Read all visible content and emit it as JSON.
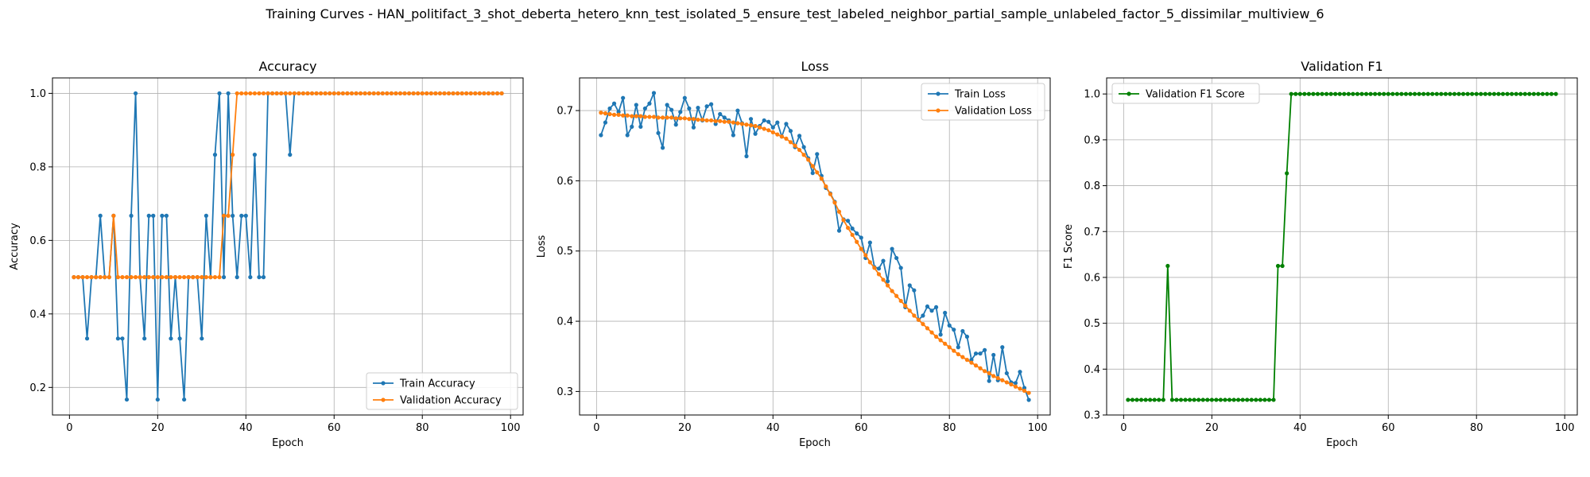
{
  "suptitle": "Training Curves - HAN_politifact_3_shot_deberta_hetero_knn_test_isolated_5_ensure_test_labeled_neighbor_partial_sample_unlabeled_factor_5_dissimilar_multiview_6",
  "colors": {
    "train": "#1f77b4",
    "val": "#ff7f0e",
    "f1": "#008000",
    "grid": "#b0b0b0"
  },
  "chart_data": [
    {
      "type": "line",
      "title": "Accuracy",
      "xlabel": "Epoch",
      "ylabel": "Accuracy",
      "xlim": [
        -3.85,
        102.85
      ],
      "ylim": [
        0.125,
        1.042
      ],
      "xticks": [
        0,
        20,
        40,
        60,
        80,
        100
      ],
      "yticks": [
        0.2,
        0.4,
        0.6,
        0.8,
        1.0
      ],
      "ytick_labels": [
        "0.2",
        "0.4",
        "0.6",
        "0.8",
        "1.0"
      ],
      "grid": true,
      "legend_position": "lower-right",
      "series": [
        {
          "name": "Train Accuracy",
          "color": "#1f77b4",
          "x": [
            1,
            2,
            3,
            4,
            5,
            6,
            7,
            8,
            9,
            10,
            11,
            12,
            13,
            14,
            15,
            16,
            17,
            18,
            19,
            20,
            21,
            22,
            23,
            24,
            25,
            26,
            27,
            28,
            29,
            30,
            31,
            32,
            33,
            34,
            35,
            36,
            37,
            38,
            39,
            40,
            41,
            42,
            43,
            44,
            45,
            46,
            47,
            48,
            49,
            50,
            51,
            52,
            53,
            54,
            55,
            56,
            57,
            58,
            59,
            60,
            61,
            62,
            63,
            64,
            65,
            66,
            67,
            68,
            69,
            70,
            71,
            72,
            73,
            74,
            75,
            76,
            77,
            78,
            79,
            80,
            81,
            82,
            83,
            84,
            85,
            86,
            87,
            88,
            89,
            90,
            91,
            92,
            93,
            94,
            95,
            96,
            97,
            98
          ],
          "y": [
            0.5,
            0.5,
            0.5,
            0.333,
            0.5,
            0.5,
            0.667,
            0.5,
            0.5,
            0.667,
            0.333,
            0.333,
            0.167,
            0.667,
            1.0,
            0.5,
            0.333,
            0.667,
            0.667,
            0.167,
            0.667,
            0.667,
            0.333,
            0.5,
            0.333,
            0.167,
            0.5,
            0.5,
            0.5,
            0.333,
            0.667,
            0.5,
            0.833,
            1.0,
            0.5,
            1.0,
            0.667,
            0.5,
            0.667,
            0.667,
            0.5,
            0.833,
            0.5,
            0.5,
            1.0,
            1.0,
            1.0,
            1.0,
            1.0,
            0.833,
            1.0,
            1.0,
            1.0,
            1.0,
            1.0,
            1.0,
            1.0,
            1.0,
            1.0,
            1.0,
            1.0,
            1.0,
            1.0,
            1.0,
            1.0,
            1.0,
            1.0,
            1.0,
            1.0,
            1.0,
            1.0,
            1.0,
            1.0,
            1.0,
            1.0,
            1.0,
            1.0,
            1.0,
            1.0,
            1.0,
            1.0,
            1.0,
            1.0,
            1.0,
            1.0,
            1.0,
            1.0,
            1.0,
            1.0,
            1.0,
            1.0,
            1.0,
            1.0,
            1.0,
            1.0,
            1.0,
            1.0,
            1.0
          ]
        },
        {
          "name": "Validation Accuracy",
          "color": "#ff7f0e",
          "x": [
            1,
            2,
            3,
            4,
            5,
            6,
            7,
            8,
            9,
            10,
            11,
            12,
            13,
            14,
            15,
            16,
            17,
            18,
            19,
            20,
            21,
            22,
            23,
            24,
            25,
            26,
            27,
            28,
            29,
            30,
            31,
            32,
            33,
            34,
            35,
            36,
            37,
            38,
            39,
            40,
            41,
            42,
            43,
            44,
            45,
            46,
            47,
            48,
            49,
            50,
            51,
            52,
            53,
            54,
            55,
            56,
            57,
            58,
            59,
            60,
            61,
            62,
            63,
            64,
            65,
            66,
            67,
            68,
            69,
            70,
            71,
            72,
            73,
            74,
            75,
            76,
            77,
            78,
            79,
            80,
            81,
            82,
            83,
            84,
            85,
            86,
            87,
            88,
            89,
            90,
            91,
            92,
            93,
            94,
            95,
            96,
            97,
            98
          ],
          "y": [
            0.5,
            0.5,
            0.5,
            0.5,
            0.5,
            0.5,
            0.5,
            0.5,
            0.5,
            0.667,
            0.5,
            0.5,
            0.5,
            0.5,
            0.5,
            0.5,
            0.5,
            0.5,
            0.5,
            0.5,
            0.5,
            0.5,
            0.5,
            0.5,
            0.5,
            0.5,
            0.5,
            0.5,
            0.5,
            0.5,
            0.5,
            0.5,
            0.5,
            0.5,
            0.667,
            0.667,
            0.833,
            1.0,
            1.0,
            1.0,
            1.0,
            1.0,
            1.0,
            1.0,
            1.0,
            1.0,
            1.0,
            1.0,
            1.0,
            1.0,
            1.0,
            1.0,
            1.0,
            1.0,
            1.0,
            1.0,
            1.0,
            1.0,
            1.0,
            1.0,
            1.0,
            1.0,
            1.0,
            1.0,
            1.0,
            1.0,
            1.0,
            1.0,
            1.0,
            1.0,
            1.0,
            1.0,
            1.0,
            1.0,
            1.0,
            1.0,
            1.0,
            1.0,
            1.0,
            1.0,
            1.0,
            1.0,
            1.0,
            1.0,
            1.0,
            1.0,
            1.0,
            1.0,
            1.0,
            1.0,
            1.0,
            1.0,
            1.0,
            1.0,
            1.0,
            1.0,
            1.0,
            1.0
          ]
        }
      ]
    },
    {
      "type": "line",
      "title": "Loss",
      "xlabel": "Epoch",
      "ylabel": "Loss",
      "xlim": [
        -3.85,
        102.85
      ],
      "ylim": [
        0.2665,
        0.7465
      ],
      "xticks": [
        0,
        20,
        40,
        60,
        80,
        100
      ],
      "yticks": [
        0.3,
        0.4,
        0.5,
        0.6,
        0.7
      ],
      "ytick_labels": [
        "0.3",
        "0.4",
        "0.5",
        "0.6",
        "0.7"
      ],
      "grid": true,
      "legend_position": "upper-right",
      "series": [
        {
          "name": "Train Loss",
          "color": "#1f77b4",
          "x": [
            1,
            2,
            3,
            4,
            5,
            6,
            7,
            8,
            9,
            10,
            11,
            12,
            13,
            14,
            15,
            16,
            17,
            18,
            19,
            20,
            21,
            22,
            23,
            24,
            25,
            26,
            27,
            28,
            29,
            30,
            31,
            32,
            33,
            34,
            35,
            36,
            37,
            38,
            39,
            40,
            41,
            42,
            43,
            44,
            45,
            46,
            47,
            48,
            49,
            50,
            51,
            52,
            53,
            54,
            55,
            56,
            57,
            58,
            59,
            60,
            61,
            62,
            63,
            64,
            65,
            66,
            67,
            68,
            69,
            70,
            71,
            72,
            73,
            74,
            75,
            76,
            77,
            78,
            79,
            80,
            81,
            82,
            83,
            84,
            85,
            86,
            87,
            88,
            89,
            90,
            91,
            92,
            93,
            94,
            95,
            96,
            97,
            98
          ],
          "y": [
            0.665,
            0.683,
            0.703,
            0.71,
            0.698,
            0.718,
            0.665,
            0.677,
            0.708,
            0.677,
            0.703,
            0.71,
            0.725,
            0.668,
            0.647,
            0.708,
            0.701,
            0.68,
            0.698,
            0.718,
            0.703,
            0.676,
            0.704,
            0.686,
            0.706,
            0.709,
            0.681,
            0.695,
            0.69,
            0.686,
            0.665,
            0.7,
            0.682,
            0.635,
            0.688,
            0.667,
            0.678,
            0.686,
            0.684,
            0.676,
            0.683,
            0.663,
            0.681,
            0.671,
            0.648,
            0.664,
            0.648,
            0.632,
            0.611,
            0.638,
            0.607,
            0.59,
            0.582,
            0.57,
            0.529,
            0.545,
            0.543,
            0.532,
            0.525,
            0.519,
            0.49,
            0.512,
            0.477,
            0.475,
            0.486,
            0.457,
            0.503,
            0.49,
            0.476,
            0.42,
            0.451,
            0.444,
            0.402,
            0.408,
            0.421,
            0.415,
            0.42,
            0.381,
            0.412,
            0.394,
            0.388,
            0.363,
            0.386,
            0.378,
            0.345,
            0.354,
            0.354,
            0.359,
            0.315,
            0.352,
            0.316,
            0.363,
            0.326,
            0.313,
            0.312,
            0.328,
            0.305,
            0.288
          ]
        },
        {
          "name": "Validation Loss",
          "color": "#ff7f0e",
          "x": [
            1,
            2,
            3,
            4,
            5,
            6,
            7,
            8,
            9,
            10,
            11,
            12,
            13,
            14,
            15,
            16,
            17,
            18,
            19,
            20,
            21,
            22,
            23,
            24,
            25,
            26,
            27,
            28,
            29,
            30,
            31,
            32,
            33,
            34,
            35,
            36,
            37,
            38,
            39,
            40,
            41,
            42,
            43,
            44,
            45,
            46,
            47,
            48,
            49,
            50,
            51,
            52,
            53,
            54,
            55,
            56,
            57,
            58,
            59,
            60,
            61,
            62,
            63,
            64,
            65,
            66,
            67,
            68,
            69,
            70,
            71,
            72,
            73,
            74,
            75,
            76,
            77,
            78,
            79,
            80,
            81,
            82,
            83,
            84,
            85,
            86,
            87,
            88,
            89,
            90,
            91,
            92,
            93,
            94,
            95,
            96,
            97,
            98
          ],
          "y": [
            0.697,
            0.696,
            0.695,
            0.694,
            0.694,
            0.693,
            0.693,
            0.692,
            0.692,
            0.692,
            0.691,
            0.691,
            0.691,
            0.69,
            0.69,
            0.69,
            0.69,
            0.689,
            0.689,
            0.689,
            0.688,
            0.688,
            0.687,
            0.687,
            0.686,
            0.686,
            0.685,
            0.685,
            0.684,
            0.684,
            0.683,
            0.682,
            0.681,
            0.68,
            0.679,
            0.678,
            0.676,
            0.674,
            0.672,
            0.669,
            0.666,
            0.663,
            0.66,
            0.655,
            0.65,
            0.644,
            0.637,
            0.63,
            0.621,
            0.612,
            0.603,
            0.592,
            0.581,
            0.569,
            0.556,
            0.544,
            0.533,
            0.523,
            0.513,
            0.503,
            0.494,
            0.484,
            0.476,
            0.467,
            0.459,
            0.451,
            0.443,
            0.436,
            0.429,
            0.422,
            0.415,
            0.408,
            0.402,
            0.396,
            0.39,
            0.384,
            0.378,
            0.373,
            0.368,
            0.363,
            0.358,
            0.353,
            0.349,
            0.345,
            0.341,
            0.337,
            0.333,
            0.329,
            0.326,
            0.322,
            0.319,
            0.316,
            0.313,
            0.31,
            0.307,
            0.304,
            0.301,
            0.298
          ]
        }
      ]
    },
    {
      "type": "line",
      "title": "Validation F1",
      "xlabel": "Epoch",
      "ylabel": "F1 Score",
      "xlim": [
        -3.85,
        102.85
      ],
      "ylim": [
        0.3,
        1.035
      ],
      "xticks": [
        0,
        20,
        40,
        60,
        80,
        100
      ],
      "yticks": [
        0.3,
        0.4,
        0.5,
        0.6,
        0.7,
        0.8,
        0.9,
        1.0
      ],
      "ytick_labels": [
        "0.3",
        "0.4",
        "0.5",
        "0.6",
        "0.7",
        "0.8",
        "0.9",
        "1.0"
      ],
      "grid": true,
      "legend_position": "upper-left",
      "series": [
        {
          "name": "Validation F1 Score",
          "color": "#008000",
          "x": [
            1,
            2,
            3,
            4,
            5,
            6,
            7,
            8,
            9,
            10,
            11,
            12,
            13,
            14,
            15,
            16,
            17,
            18,
            19,
            20,
            21,
            22,
            23,
            24,
            25,
            26,
            27,
            28,
            29,
            30,
            31,
            32,
            33,
            34,
            35,
            36,
            37,
            38,
            39,
            40,
            41,
            42,
            43,
            44,
            45,
            46,
            47,
            48,
            49,
            50,
            51,
            52,
            53,
            54,
            55,
            56,
            57,
            58,
            59,
            60,
            61,
            62,
            63,
            64,
            65,
            66,
            67,
            68,
            69,
            70,
            71,
            72,
            73,
            74,
            75,
            76,
            77,
            78,
            79,
            80,
            81,
            82,
            83,
            84,
            85,
            86,
            87,
            88,
            89,
            90,
            91,
            92,
            93,
            94,
            95,
            96,
            97,
            98
          ],
          "y": [
            0.333,
            0.333,
            0.333,
            0.333,
            0.333,
            0.333,
            0.333,
            0.333,
            0.333,
            0.625,
            0.333,
            0.333,
            0.333,
            0.333,
            0.333,
            0.333,
            0.333,
            0.333,
            0.333,
            0.333,
            0.333,
            0.333,
            0.333,
            0.333,
            0.333,
            0.333,
            0.333,
            0.333,
            0.333,
            0.333,
            0.333,
            0.333,
            0.333,
            0.333,
            0.625,
            0.625,
            0.827,
            1.0,
            1.0,
            1.0,
            1.0,
            1.0,
            1.0,
            1.0,
            1.0,
            1.0,
            1.0,
            1.0,
            1.0,
            1.0,
            1.0,
            1.0,
            1.0,
            1.0,
            1.0,
            1.0,
            1.0,
            1.0,
            1.0,
            1.0,
            1.0,
            1.0,
            1.0,
            1.0,
            1.0,
            1.0,
            1.0,
            1.0,
            1.0,
            1.0,
            1.0,
            1.0,
            1.0,
            1.0,
            1.0,
            1.0,
            1.0,
            1.0,
            1.0,
            1.0,
            1.0,
            1.0,
            1.0,
            1.0,
            1.0,
            1.0,
            1.0,
            1.0,
            1.0,
            1.0,
            1.0,
            1.0,
            1.0,
            1.0,
            1.0,
            1.0,
            1.0,
            1.0
          ]
        }
      ]
    }
  ]
}
